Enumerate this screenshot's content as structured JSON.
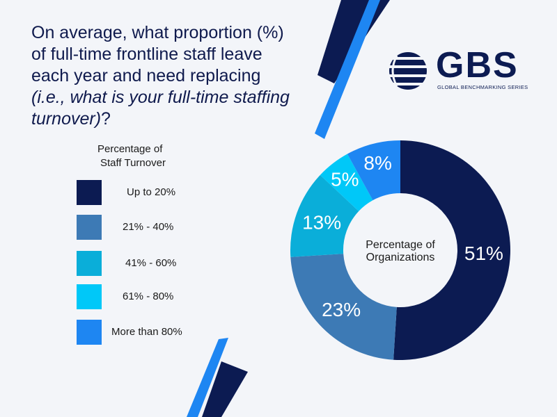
{
  "question": {
    "plain": "On average, what proportion (%) of full-time frontline staff leave each year and need replacing ",
    "italic": "(i.e., what is your full-time staffing turnover)",
    "end": "?"
  },
  "logo": {
    "text": "GBS",
    "subtitle": "GLOBAL BENCHMARKING SERIES"
  },
  "colors": {
    "navy": "#0c1b52",
    "steel_blue": "#3d7ab5",
    "teal": "#0aaed9",
    "light_cyan": "#00c8f8",
    "bright_blue": "#1e86f2"
  },
  "chart_data": {
    "type": "pie",
    "donut": true,
    "legend_title": [
      "Percentage of",
      "Staff Turnover"
    ],
    "center_label": [
      "Percentage of",
      "Organizations"
    ],
    "categories": [
      "Up to 20%",
      "21% - 40%",
      "41% - 60%",
      "61% - 80%",
      "More than 80%"
    ],
    "values": [
      51,
      23,
      13,
      5,
      8
    ],
    "value_labels": [
      "51%",
      "23%",
      "13%",
      "5%",
      "8%"
    ],
    "colors": [
      "#0c1b52",
      "#3d7ab5",
      "#0aaed9",
      "#00c8f8",
      "#1e86f2"
    ],
    "legend_position": "left"
  }
}
